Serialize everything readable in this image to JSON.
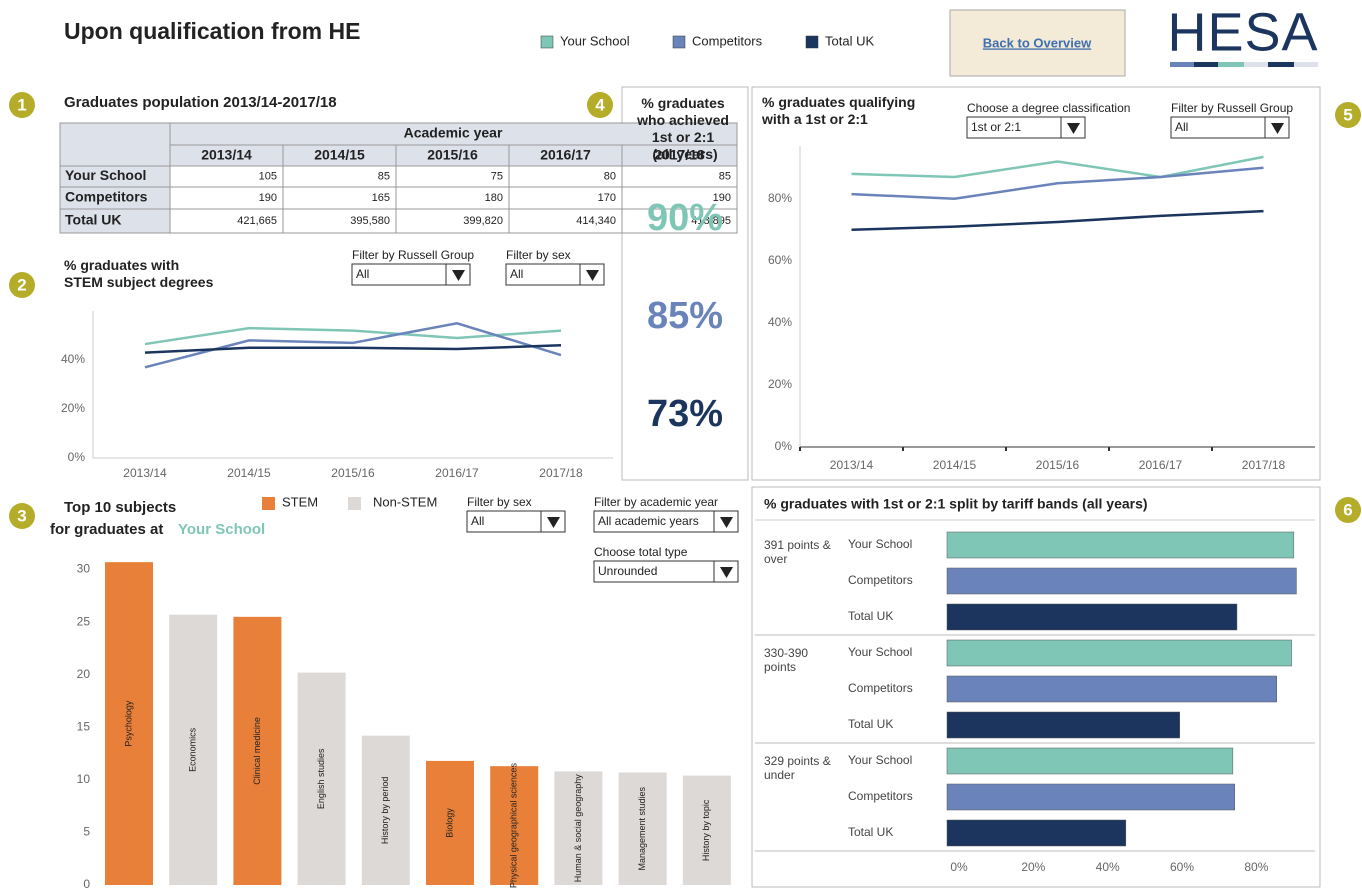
{
  "header": {
    "title": "Upon qualification from HE",
    "button": "Back to Overview",
    "logo": "HESA"
  },
  "badges": [
    1,
    2,
    3,
    4,
    5,
    6
  ],
  "table": {
    "title": "Graduates population 2013/14-2017/18",
    "group_header": "Academic year",
    "columns": [
      "2013/14",
      "2014/15",
      "2015/16",
      "2016/17",
      "2017/18"
    ],
    "rows": [
      {
        "label": "Your School",
        "cells": [
          "105",
          "85",
          "75",
          "80",
          "85"
        ]
      },
      {
        "label": "Competitors",
        "cells": [
          "190",
          "165",
          "180",
          "170",
          "190"
        ]
      },
      {
        "label": "Total UK",
        "cells": [
          "421,665",
          "395,580",
          "399,820",
          "414,340",
          "418,895"
        ]
      }
    ]
  },
  "kpi": {
    "title": "% graduates who achieved 1st or 2:1 (all years)",
    "values": [
      {
        "value": 90,
        "label": "90%",
        "color": "#7fc6b6"
      },
      {
        "value": 85,
        "label": "85%",
        "color": "#6a84bb"
      },
      {
        "value": 73,
        "label": "73%",
        "color": "#1b355e"
      }
    ]
  },
  "chart_data": [
    {
      "type": "line",
      "title": "% graduates with STEM subject degrees",
      "filters": [
        {
          "label": "Filter by Russell Group",
          "value": "All"
        },
        {
          "label": "Filter by sex",
          "value": "All"
        }
      ],
      "categories": [
        "2013/14",
        "2014/15",
        "2015/16",
        "2016/17",
        "2017/18"
      ],
      "series": [
        {
          "name": "Your School",
          "color": "#7fc6b6",
          "values": [
            46.5,
            53,
            52,
            49,
            52
          ]
        },
        {
          "name": "Competitors",
          "color": "#6a84bb",
          "values": [
            37,
            48,
            47,
            55,
            42
          ]
        },
        {
          "name": "Total UK",
          "color": "#1b355e",
          "values": [
            43,
            45,
            45,
            44.5,
            46
          ]
        }
      ],
      "ylim": [
        0,
        60
      ],
      "yticks": [
        {
          "value": 0,
          "label": "0%"
        },
        {
          "value": 20,
          "label": "20%"
        },
        {
          "value": 40,
          "label": "40%"
        }
      ]
    },
    {
      "type": "line",
      "title": "% graduates qualifying with a 1st or 2:1",
      "filters": [
        {
          "label": "Choose a degree classification",
          "value": "1st or 2:1"
        },
        {
          "label": "Filter by Russell Group",
          "value": "All"
        }
      ],
      "categories": [
        "2013/14",
        "2014/15",
        "2015/16",
        "2016/17",
        "2017/18"
      ],
      "series": [
        {
          "color": "#7fc6b6",
          "values": [
            88,
            87,
            92,
            87,
            93.5
          ]
        },
        {
          "color": "#6a84bb",
          "values": [
            81.5,
            80,
            85,
            87,
            90
          ]
        },
        {
          "color": "#1b355e",
          "values": [
            70,
            71,
            72.5,
            74.5,
            76
          ]
        }
      ],
      "ylim": [
        0,
        97
      ],
      "yticks": [
        {
          "value": 0,
          "label": "0%"
        },
        {
          "value": 20,
          "label": "20%"
        },
        {
          "value": 40,
          "label": "40%"
        },
        {
          "value": 60,
          "label": "60%"
        },
        {
          "value": 80,
          "label": "80%"
        }
      ]
    },
    {
      "type": "bar",
      "title": "Top 10 subjects",
      "subtitle": "for graduates at",
      "subtitle_highlight": "Your School",
      "legend": [
        {
          "name": "STEM",
          "color": "#e8803a"
        },
        {
          "name": "Non-STEM",
          "color": "#dcd9d6"
        }
      ],
      "filters": [
        {
          "label": "Filter by sex",
          "value": "All"
        },
        {
          "label": "Filter by academic year",
          "value": "All academic years"
        },
        {
          "label": "Choose total type",
          "value": "Unrounded"
        }
      ],
      "categories": [
        "Psychology",
        "Economics",
        "Clinical medicine",
        "English studies",
        "History by period",
        "Biology",
        "Physical geographical sciences",
        "Human & social geography",
        "Management studies",
        "History by topic"
      ],
      "values": [
        30.7,
        25.7,
        25.5,
        20.2,
        14.2,
        11.8,
        11.3,
        10.8,
        10.7,
        10.4
      ],
      "colors": [
        "#e8803a",
        "#dcd9d6",
        "#e8803a",
        "#dcd9d6",
        "#dcd9d6",
        "#e8803a",
        "#e8803a",
        "#dcd9d6",
        "#dcd9d6",
        "#dcd9d6"
      ],
      "ylim": [
        0,
        31
      ],
      "yticks": [
        0,
        5,
        10,
        15,
        20,
        25,
        30
      ]
    },
    {
      "type": "hbar",
      "title": "% graduates with 1st or 2:1 split by tariff bands (all years)",
      "groups": [
        "391 points & over",
        "330-390 points",
        "329 points & under"
      ],
      "series": [
        {
          "name": "Your School",
          "color": "#7fc6b6",
          "values": [
            93.3,
            92.7,
            76.9
          ]
        },
        {
          "name": "Competitors",
          "color": "#6a84bb",
          "values": [
            94,
            88.7,
            77.4
          ]
        },
        {
          "name": "Total UK",
          "color": "#1b355e",
          "values": [
            78,
            62.6,
            48.1
          ]
        }
      ],
      "xlim": [
        0,
        99
      ],
      "xticks": [
        {
          "value": 0,
          "label": "0%"
        },
        {
          "value": 20,
          "label": "20%"
        },
        {
          "value": 40,
          "label": "40%"
        },
        {
          "value": 60,
          "label": "60%"
        },
        {
          "value": 80,
          "label": "80%"
        }
      ]
    }
  ]
}
